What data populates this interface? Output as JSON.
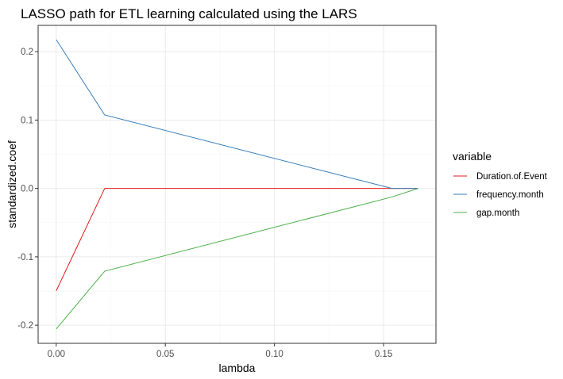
{
  "chart_data": {
    "type": "line",
    "title": "LASSO path for ETL learning calculated using the LARS",
    "xlabel": "lambda",
    "ylabel": "standardized.coef",
    "xlim": [
      -0.0083,
      0.174
    ],
    "ylim": [
      -0.2265,
      0.2385
    ],
    "x_ticks": [
      0.0,
      0.05,
      0.1,
      0.15
    ],
    "x_tick_labels": [
      "0.00",
      "0.05",
      "0.10",
      "0.15"
    ],
    "y_ticks": [
      -0.2,
      -0.1,
      0.0,
      0.1,
      0.2
    ],
    "y_tick_labels": [
      "-0.2",
      "-0.1",
      "0.0",
      "0.1",
      "0.2"
    ],
    "grid": true,
    "legend_position": "right",
    "legend_title": "variable",
    "series": [
      {
        "name": "Duration.of.Event",
        "color": "#e41a1c",
        "x": [
          0.0,
          0.0222,
          0.1538,
          0.1658
        ],
        "y": [
          -0.1497,
          0.0,
          0.0,
          0.0
        ]
      },
      {
        "name": "frequency.month",
        "color": "#377eb8",
        "x": [
          0.0,
          0.0222,
          0.1538,
          0.1658
        ],
        "y": [
          0.2176,
          0.1075,
          0.0,
          0.0
        ]
      },
      {
        "name": "gap.month",
        "color": "#4daf4a",
        "x": [
          0.0,
          0.0222,
          0.1538,
          0.1658
        ],
        "y": [
          -0.2055,
          -0.121,
          -0.0125,
          0.0
        ]
      }
    ]
  }
}
